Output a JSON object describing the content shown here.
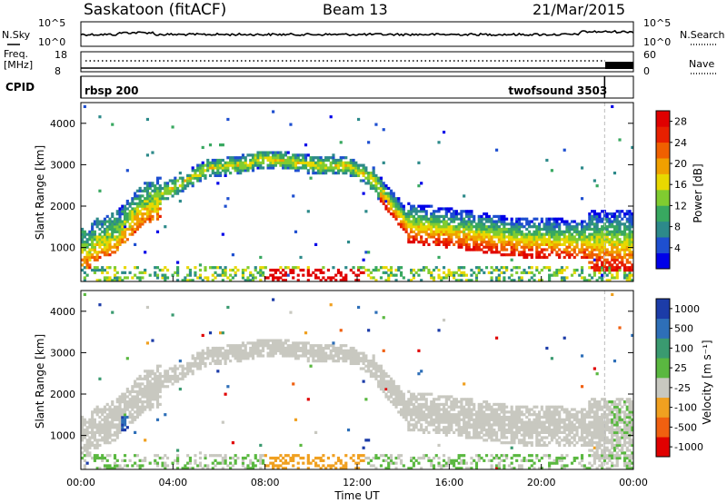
{
  "header": {
    "station": "Saskatoon (fitACF)",
    "beam": "Beam 13",
    "date": "21/Mar/2015"
  },
  "top_panels": {
    "noise_left_label": "N.Sky",
    "noise_right_label": "N.Search",
    "noise_ticks": [
      "10^5",
      "10^0"
    ],
    "freq_label_line1": "Freq.",
    "freq_label_line2": "[MHz]",
    "freq_ticks": [
      "18",
      "8"
    ],
    "nave_label": "Nave",
    "nave_ticks": [
      "60",
      "0"
    ],
    "cpid_label": "CPID",
    "cpid_segments": [
      {
        "name": "rbsp 200",
        "start_hour": 0.0,
        "end_hour": 22.75
      },
      {
        "name": "twofsound 3503",
        "start_hour": 22.75,
        "end_hour": 24.0
      }
    ]
  },
  "chart_data": [
    {
      "type": "heatmap",
      "panel": "power",
      "ylabel": "Slant Range [km]",
      "xlabel": "",
      "xlim": [
        0,
        24
      ],
      "ylim": [
        180,
        4500
      ],
      "yticks": [
        "1000",
        "2000",
        "3000",
        "4000"
      ],
      "colorbar": {
        "label": "Power [dB]",
        "ticks": [
          "4",
          "8",
          "12",
          "16",
          "20",
          "24",
          "28"
        ],
        "range": [
          0,
          30
        ],
        "colors": [
          "#0000e8",
          "#1e4fd0",
          "#2d8a8a",
          "#38a860",
          "#80cc30",
          "#e8d800",
          "#f0a000",
          "#f06000",
          "#e82000",
          "#e00000"
        ]
      },
      "grid": false
    },
    {
      "type": "heatmap",
      "panel": "velocity",
      "ylabel": "Slant Range [km]",
      "xlabel": "Time UT",
      "xlim": [
        0,
        24
      ],
      "ylim": [
        180,
        4500
      ],
      "yticks": [
        "1000",
        "2000",
        "3000",
        "4000"
      ],
      "xticks": [
        "00:00",
        "04:00",
        "08:00",
        "12:00",
        "16:00",
        "20:00",
        "00:00"
      ],
      "colorbar": {
        "label": "Velocity [m s⁻¹]",
        "ticks": [
          "1000",
          "500",
          "100",
          "25",
          "-25",
          "-100",
          "-500",
          "-1000"
        ],
        "colors": [
          "#1c3ca8",
          "#2e6fb8",
          "#3a9a70",
          "#5ab840",
          "#c8c8c0",
          "#f0a020",
          "#f06010",
          "#e00000"
        ]
      },
      "grid": false
    }
  ]
}
